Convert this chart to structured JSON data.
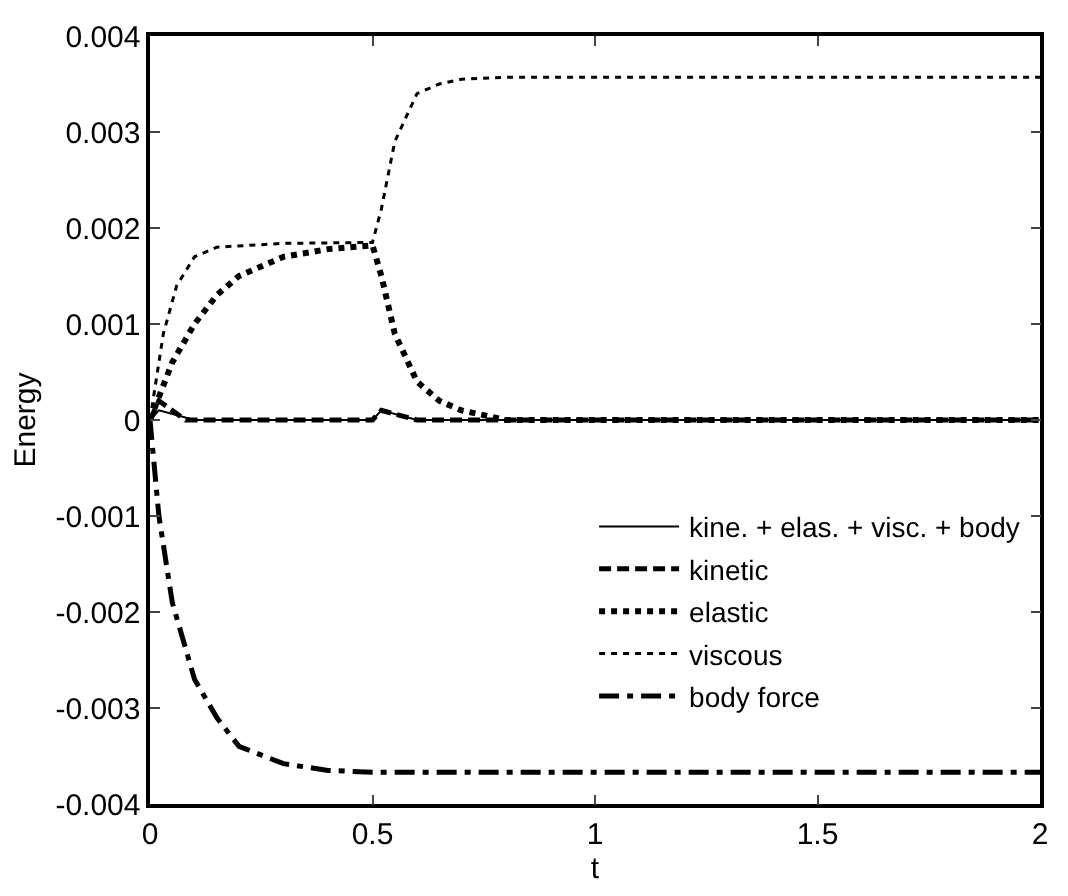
{
  "chart_data": {
    "type": "line",
    "xlabel": "t",
    "ylabel": "Energy",
    "xlim": [
      0,
      2
    ],
    "ylim": [
      -0.004,
      0.004
    ],
    "xticks": [
      0,
      0.5,
      1,
      1.5,
      2
    ],
    "yticks": [
      {
        "value": -0.004,
        "label": "-0.004"
      },
      {
        "value": -0.003,
        "label": "-0.003"
      },
      {
        "value": -0.002,
        "label": "-0.002"
      },
      {
        "value": -0.001,
        "label": "-0.001"
      },
      {
        "value": 0,
        "label": "0"
      },
      {
        "value": 0.001,
        "label": "0.001"
      },
      {
        "value": 0.002,
        "label": "0.002"
      },
      {
        "value": 0.003,
        "label": "0.003"
      },
      {
        "value": 0.004,
        "label": "0.004"
      }
    ],
    "legend": "bottom right",
    "marker": "none",
    "series": [
      {
        "name": "kine. + elas. + visc. + body",
        "color": "#000000",
        "line_style": "solid",
        "x": [
          0,
          0.02,
          0.1,
          0.5,
          0.52,
          0.6,
          0.7,
          2
        ],
        "values": [
          0,
          0.0001,
          0,
          0,
          0.0001,
          0,
          0,
          0
        ]
      },
      {
        "name": "kinetic",
        "color": "#000000",
        "line_style": "dashed",
        "x": [
          0,
          0.02,
          0.08,
          0.5,
          0.52,
          0.6,
          0.7,
          2
        ],
        "values": [
          0,
          0.0002,
          0,
          0,
          0.0001,
          0,
          0,
          0
        ]
      },
      {
        "name": "elastic",
        "color": "#000000",
        "line_style": "dotted",
        "x": [
          0,
          0.05,
          0.1,
          0.15,
          0.2,
          0.3,
          0.4,
          0.5,
          0.52,
          0.55,
          0.6,
          0.65,
          0.7,
          0.8,
          2
        ],
        "values": [
          0,
          0.0006,
          0.001,
          0.0013,
          0.0015,
          0.0017,
          0.00178,
          0.00182,
          0.0015,
          0.0009,
          0.0004,
          0.0002,
          0.0001,
          0,
          0
        ]
      },
      {
        "name": "viscous",
        "color": "#000000",
        "line_style": "dotted",
        "x": [
          0,
          0.03,
          0.06,
          0.1,
          0.15,
          0.3,
          0.5,
          0.52,
          0.55,
          0.6,
          0.65,
          0.7,
          0.8,
          2
        ],
        "values": [
          0,
          0.0009,
          0.0014,
          0.0017,
          0.0018,
          0.00184,
          0.00185,
          0.0022,
          0.0029,
          0.0034,
          0.0035,
          0.00355,
          0.00357,
          0.00357
        ]
      },
      {
        "name": "body force",
        "color": "#000000",
        "line_style": "dashdot",
        "x": [
          0,
          0.02,
          0.05,
          0.1,
          0.15,
          0.2,
          0.3,
          0.4,
          0.5,
          2
        ],
        "values": [
          0,
          -0.001,
          -0.0019,
          -0.0027,
          -0.0031,
          -0.0034,
          -0.00358,
          -0.00365,
          -0.00367,
          -0.00367
        ]
      }
    ]
  }
}
